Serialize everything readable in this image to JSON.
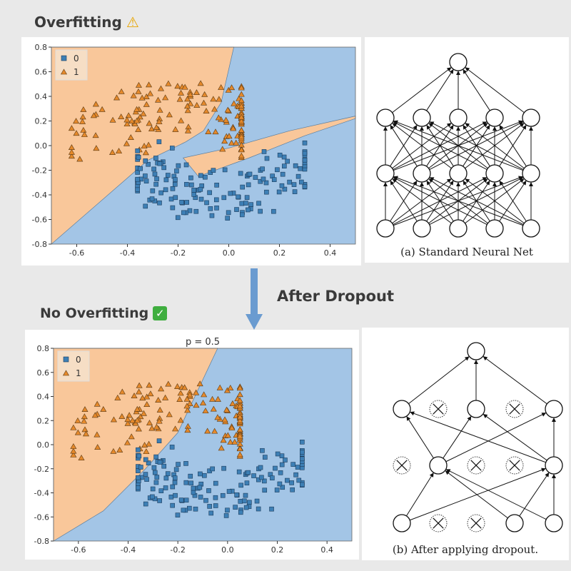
{
  "headings": {
    "top": "Overfitting",
    "top_emoji": "warning-icon",
    "middle": "After Dropout",
    "bottom": "No Overfitting",
    "bottom_emoji": "check-icon"
  },
  "colors": {
    "class0_region": "#a3c5e6",
    "class1_region": "#f9c79a",
    "class0_marker": "#3d7fb5",
    "class1_marker": "#e5892b",
    "arrow": "#6a9bd0"
  },
  "chart_data": [
    {
      "type": "scatter",
      "title": "",
      "legend": {
        "placement": "top-left",
        "entries": [
          "0",
          "1"
        ]
      },
      "xlim": [
        -0.7,
        0.5
      ],
      "ylim": [
        -0.8,
        0.8
      ],
      "xticks": [
        "-0.6",
        "-0.4",
        "-0.2",
        "0.0",
        "0.2",
        "0.4"
      ],
      "yticks": [
        "0.8",
        "0.6",
        "0.4",
        "0.2",
        "0.0",
        "-0.2",
        "-0.4",
        "-0.6",
        "-0.8"
      ],
      "decision_boundary": "overfit, with a narrow orange spike extending into the blue region toward x=0.5, y=0.2"
    },
    {
      "type": "scatter",
      "title": "p = 0.5",
      "legend": {
        "placement": "top-left",
        "entries": [
          "0",
          "1"
        ]
      },
      "xlim": [
        -0.7,
        0.5
      ],
      "ylim": [
        -0.8,
        0.8
      ],
      "xticks": [
        "-0.6",
        "-0.4",
        "-0.2",
        "0.0",
        "0.2",
        "0.4"
      ],
      "yticks": [
        "0.8",
        "0.6",
        "0.4",
        "0.2",
        "0.0",
        "-0.2",
        "-0.4",
        "-0.6",
        "-0.8"
      ],
      "decision_boundary": "smooth diagonal"
    }
  ],
  "networks": {
    "standard": {
      "caption": "(a) Standard Neural Net"
    },
    "dropout": {
      "caption": "(b) After applying dropout."
    }
  }
}
